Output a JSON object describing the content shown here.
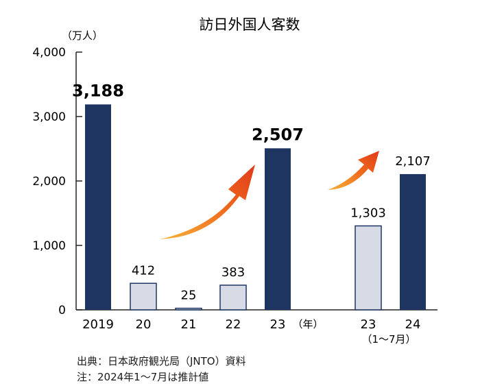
{
  "chart_data": {
    "type": "bar",
    "title": "訪日外国人客数",
    "unit_label": "（万人）",
    "ylim": [
      0,
      4000
    ],
    "yticks": [
      {
        "value": 4000,
        "label": "4,000"
      },
      {
        "value": 3000,
        "label": "3,000"
      },
      {
        "value": 2000,
        "label": "2,000"
      },
      {
        "value": 1000,
        "label": "1,000"
      },
      {
        "value": 0,
        "label": "0"
      }
    ],
    "bars": [
      {
        "category": "2019",
        "value": 3188,
        "label": "3,188",
        "color": "#1f3561",
        "emphasis": true
      },
      {
        "category": "20",
        "value": 412,
        "label": "412",
        "color": "#d6dbe6",
        "emphasis": false
      },
      {
        "category": "21",
        "value": 25,
        "label": "25",
        "color": "#d6dbe6",
        "emphasis": false
      },
      {
        "category": "22",
        "value": 383,
        "label": "383",
        "color": "#d6dbe6",
        "emphasis": false
      },
      {
        "category": "23",
        "value": 2507,
        "label": "2,507",
        "color": "#1f3561",
        "emphasis": true
      },
      {
        "category": "23",
        "value": 1303,
        "label": "1,303",
        "color": "#d6dbe6",
        "emphasis": false
      },
      {
        "category": "24",
        "value": 2107,
        "label": "2,107",
        "color": "#1f3561",
        "emphasis": false
      }
    ],
    "year_marker": "（年）",
    "period_label": "（1～7月）",
    "grid": false,
    "arrow_color": "#f07a1e"
  },
  "notes": {
    "source": "出典：日本政府観光局（JNTO）資料",
    "remark": "注：2024年1～7月は推計値"
  }
}
